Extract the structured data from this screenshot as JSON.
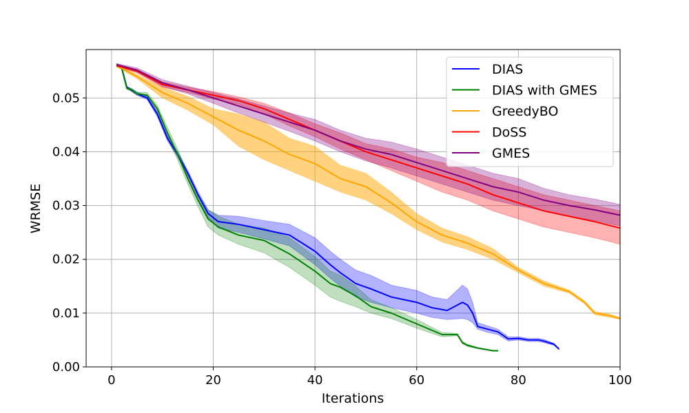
{
  "chart_data": {
    "type": "line",
    "title": "",
    "xlabel": "Iterations",
    "ylabel": "WRMSE",
    "xlim": [
      -5,
      100
    ],
    "ylim": [
      0,
      0.059
    ],
    "xticks": [
      0,
      20,
      40,
      60,
      80,
      100
    ],
    "yticks": [
      0.0,
      0.01,
      0.02,
      0.03,
      0.04,
      0.05
    ],
    "xtick_labels": [
      "0",
      "20",
      "40",
      "60",
      "80",
      "100"
    ],
    "ytick_labels": [
      "0.00",
      "0.01",
      "0.02",
      "0.03",
      "0.04",
      "0.05"
    ],
    "grid": true,
    "legend_position": "top-right",
    "series": [
      {
        "name": "DIAS",
        "color": "#0000ff",
        "fill_opacity": 0.3,
        "x": [
          1,
          2,
          3,
          5,
          7,
          9,
          11,
          13,
          15,
          17,
          19,
          21,
          25,
          30,
          35,
          40,
          43,
          45,
          48,
          51,
          55,
          60,
          63,
          66,
          69,
          70,
          71,
          72,
          74,
          76,
          78,
          80,
          82,
          84,
          85,
          87,
          88
        ],
        "mean": [
          0.0562,
          0.0556,
          0.052,
          0.0508,
          0.05,
          0.047,
          0.0425,
          0.0395,
          0.036,
          0.032,
          0.0285,
          0.027,
          0.0265,
          0.0255,
          0.0245,
          0.0215,
          0.019,
          0.0175,
          0.0155,
          0.0145,
          0.013,
          0.012,
          0.011,
          0.0105,
          0.012,
          0.0115,
          0.01,
          0.0075,
          0.007,
          0.0065,
          0.0052,
          0.0053,
          0.005,
          0.005,
          0.0048,
          0.0042,
          0.0033
        ],
        "lower": [
          0.056,
          0.0554,
          0.0518,
          0.0505,
          0.0497,
          0.0465,
          0.042,
          0.039,
          0.0355,
          0.0315,
          0.0278,
          0.0258,
          0.025,
          0.0238,
          0.0225,
          0.019,
          0.0165,
          0.015,
          0.013,
          0.012,
          0.011,
          0.01,
          0.0092,
          0.0088,
          0.009,
          0.0088,
          0.0082,
          0.007,
          0.0064,
          0.006,
          0.0048,
          0.005,
          0.0047,
          0.0047,
          0.0045,
          0.004,
          0.0032
        ],
        "upper": [
          0.0564,
          0.0558,
          0.0522,
          0.0511,
          0.0503,
          0.0475,
          0.043,
          0.04,
          0.0365,
          0.0326,
          0.0292,
          0.0282,
          0.028,
          0.0272,
          0.0265,
          0.024,
          0.0215,
          0.02,
          0.018,
          0.017,
          0.0152,
          0.0142,
          0.013,
          0.0125,
          0.0152,
          0.0145,
          0.012,
          0.0082,
          0.0076,
          0.007,
          0.0056,
          0.0056,
          0.0053,
          0.0053,
          0.0051,
          0.0044,
          0.0034
        ]
      },
      {
        "name": "DIAS with GMES",
        "color": "#008000",
        "fill_opacity": 0.25,
        "x": [
          1,
          2,
          3,
          4,
          5,
          7,
          9,
          11,
          13,
          15,
          17,
          19,
          21,
          25,
          30,
          35,
          40,
          43,
          45,
          48,
          51,
          55,
          60,
          65,
          68,
          69,
          70,
          72,
          75,
          76
        ],
        "mean": [
          0.056,
          0.0555,
          0.0518,
          0.0515,
          0.0508,
          0.0505,
          0.048,
          0.0435,
          0.0395,
          0.035,
          0.031,
          0.0275,
          0.026,
          0.0245,
          0.0235,
          0.021,
          0.0178,
          0.0155,
          0.0148,
          0.0132,
          0.0112,
          0.01,
          0.008,
          0.006,
          0.006,
          0.0045,
          0.004,
          0.0035,
          0.003,
          0.003
        ],
        "lower": [
          0.0558,
          0.0553,
          0.0516,
          0.0512,
          0.0505,
          0.05,
          0.0474,
          0.0425,
          0.0385,
          0.034,
          0.0298,
          0.026,
          0.0245,
          0.0228,
          0.0212,
          0.0185,
          0.0152,
          0.013,
          0.0122,
          0.0112,
          0.01,
          0.009,
          0.0072,
          0.0056,
          0.0058,
          0.0043,
          0.0038,
          0.0034,
          0.0029,
          0.0029
        ],
        "upper": [
          0.0562,
          0.0557,
          0.052,
          0.0518,
          0.0511,
          0.051,
          0.0486,
          0.0445,
          0.0405,
          0.036,
          0.0322,
          0.0292,
          0.028,
          0.0265,
          0.0258,
          0.024,
          0.0205,
          0.0178,
          0.017,
          0.015,
          0.0125,
          0.011,
          0.0088,
          0.0064,
          0.0062,
          0.0047,
          0.0042,
          0.0036,
          0.0031,
          0.0031
        ]
      },
      {
        "name": "GreedyBO",
        "color": "#ffa500",
        "fill_opacity": 0.5,
        "x": [
          1,
          5,
          10,
          15,
          20,
          25,
          30,
          35,
          40,
          45,
          50,
          55,
          60,
          65,
          70,
          75,
          80,
          85,
          90,
          93,
          95,
          98,
          100
        ],
        "mean": [
          0.056,
          0.054,
          0.051,
          0.049,
          0.0465,
          0.044,
          0.042,
          0.0395,
          0.0378,
          0.035,
          0.0335,
          0.0305,
          0.027,
          0.0245,
          0.023,
          0.021,
          0.018,
          0.0155,
          0.014,
          0.012,
          0.01,
          0.0095,
          0.009
        ],
        "lower": [
          0.0558,
          0.0536,
          0.05,
          0.0477,
          0.045,
          0.041,
          0.0385,
          0.0365,
          0.0345,
          0.0325,
          0.031,
          0.0285,
          0.0255,
          0.0232,
          0.0218,
          0.02,
          0.0175,
          0.015,
          0.0137,
          0.0117,
          0.0097,
          0.0092,
          0.0088
        ],
        "upper": [
          0.0562,
          0.0544,
          0.052,
          0.0503,
          0.048,
          0.047,
          0.0455,
          0.0425,
          0.041,
          0.0375,
          0.036,
          0.0325,
          0.0285,
          0.0258,
          0.0242,
          0.022,
          0.0185,
          0.016,
          0.0143,
          0.0123,
          0.0103,
          0.0098,
          0.0092
        ]
      },
      {
        "name": "DoSS",
        "color": "#ff0000",
        "fill_opacity": 0.3,
        "x": [
          1,
          5,
          10,
          15,
          20,
          25,
          30,
          35,
          40,
          45,
          50,
          55,
          60,
          65,
          70,
          75,
          80,
          85,
          90,
          95,
          100
        ],
        "mean": [
          0.056,
          0.055,
          0.0525,
          0.0515,
          0.0505,
          0.0495,
          0.048,
          0.046,
          0.044,
          0.042,
          0.04,
          0.0385,
          0.037,
          0.0355,
          0.034,
          0.032,
          0.0305,
          0.029,
          0.028,
          0.027,
          0.0258
        ],
        "lower": [
          0.0558,
          0.0547,
          0.052,
          0.051,
          0.0498,
          0.0488,
          0.047,
          0.0448,
          0.0428,
          0.0405,
          0.0385,
          0.0365,
          0.0345,
          0.0325,
          0.031,
          0.029,
          0.0275,
          0.026,
          0.025,
          0.024,
          0.0228
        ],
        "upper": [
          0.0562,
          0.0553,
          0.053,
          0.052,
          0.0512,
          0.0502,
          0.049,
          0.0472,
          0.0452,
          0.0435,
          0.0415,
          0.0405,
          0.039,
          0.038,
          0.0365,
          0.035,
          0.0335,
          0.032,
          0.031,
          0.03,
          0.029
        ]
      },
      {
        "name": "GMES",
        "color": "#800080",
        "fill_opacity": 0.3,
        "x": [
          1,
          5,
          10,
          15,
          20,
          25,
          30,
          35,
          40,
          45,
          50,
          55,
          60,
          65,
          70,
          75,
          80,
          85,
          90,
          95,
          100
        ],
        "mean": [
          0.0562,
          0.0552,
          0.0528,
          0.0515,
          0.05,
          0.0485,
          0.047,
          0.0455,
          0.044,
          0.042,
          0.0405,
          0.0395,
          0.038,
          0.0365,
          0.035,
          0.0335,
          0.0325,
          0.031,
          0.03,
          0.0292,
          0.0282
        ],
        "lower": [
          0.056,
          0.0548,
          0.0522,
          0.0508,
          0.049,
          0.0472,
          0.0455,
          0.0438,
          0.042,
          0.04,
          0.0383,
          0.037,
          0.0355,
          0.034,
          0.0325,
          0.031,
          0.03,
          0.029,
          0.028,
          0.0272,
          0.0262
        ],
        "upper": [
          0.0564,
          0.0556,
          0.0534,
          0.0522,
          0.051,
          0.0498,
          0.0485,
          0.0472,
          0.046,
          0.044,
          0.0425,
          0.0418,
          0.0405,
          0.039,
          0.0375,
          0.036,
          0.035,
          0.0332,
          0.032,
          0.0312,
          0.0302
        ]
      }
    ]
  }
}
